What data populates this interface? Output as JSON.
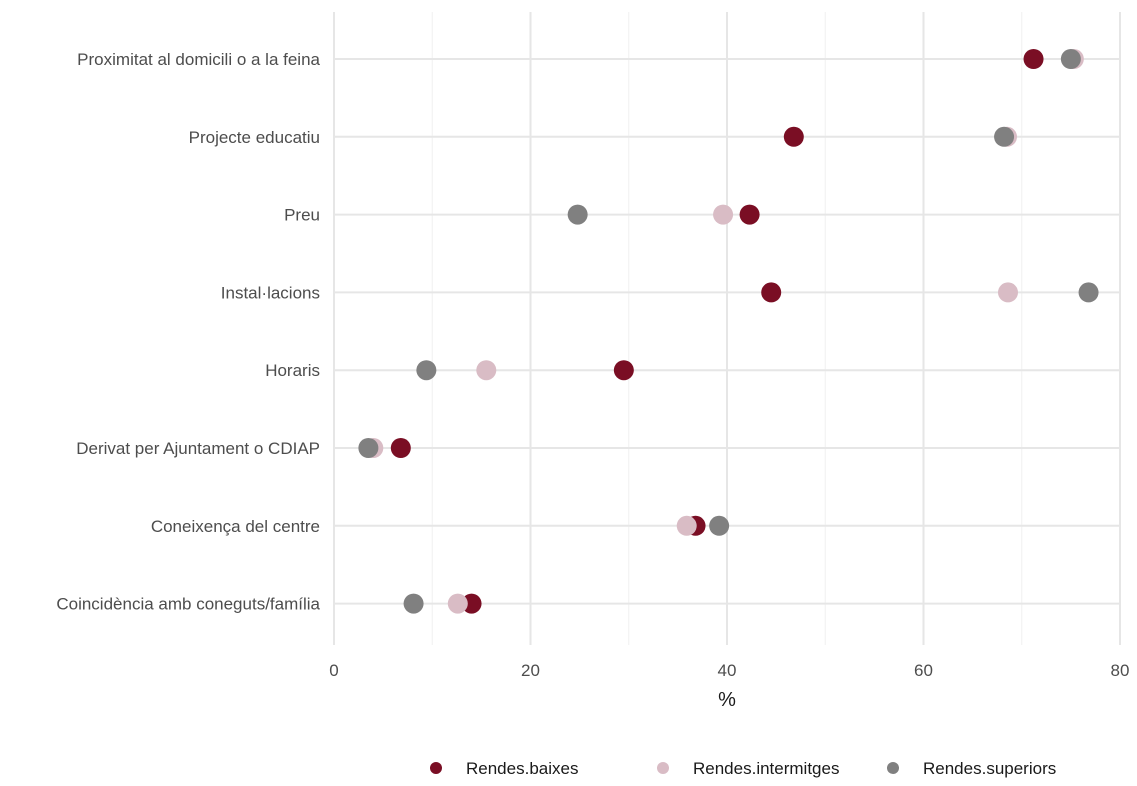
{
  "chart_data": {
    "type": "scatter",
    "xlabel": "%",
    "ylabel": "",
    "xlim": [
      0,
      80
    ],
    "x_ticks": [
      0,
      20,
      40,
      60,
      80
    ],
    "x_tick_labels": [
      "0",
      "20",
      "40",
      "60",
      "80"
    ],
    "grid": true,
    "legend_position": "bottom",
    "categories": [
      "Proximitat al domicili o a la feina",
      "Projecte educatiu",
      "Preu",
      "Instal·lacions",
      "Horaris",
      "Derivat per Ajuntament o CDIAP",
      "Coneixença del centre",
      "Coincidència amb coneguts/família"
    ],
    "series": [
      {
        "name": "Rendes.baixes",
        "color": "#7a0e24",
        "values": [
          71.2,
          46.8,
          42.3,
          44.5,
          29.5,
          6.8,
          36.8,
          14.0
        ]
      },
      {
        "name": "Rendes.intermitges",
        "color": "#d9bcc5",
        "values": [
          75.3,
          68.5,
          39.6,
          68.6,
          15.5,
          4.0,
          35.9,
          12.6
        ]
      },
      {
        "name": "Rendes.superiors",
        "color": "#808080",
        "values": [
          75.0,
          68.2,
          24.8,
          76.8,
          9.4,
          3.5,
          39.2,
          8.1
        ]
      }
    ]
  }
}
